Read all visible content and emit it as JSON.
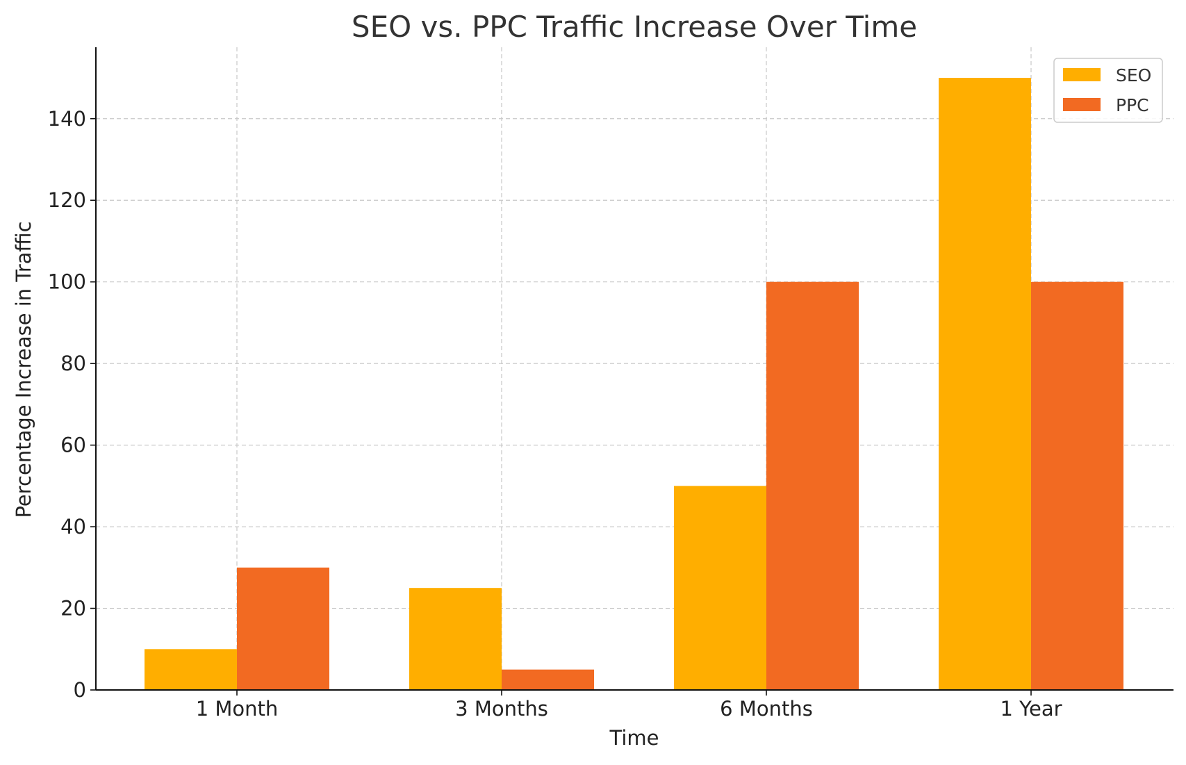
{
  "chart_data": {
    "type": "bar",
    "title": "SEO vs. PPC Traffic Increase Over Time",
    "xlabel": "Time",
    "ylabel": "Percentage Increase in Traffic",
    "categories": [
      "1 Month",
      "3 Months",
      "6 Months",
      "1 Year"
    ],
    "series": [
      {
        "name": "SEO",
        "color": "#FFAE00",
        "values": [
          10,
          25,
          50,
          150
        ]
      },
      {
        "name": "PPC",
        "color": "#F26A22",
        "values": [
          30,
          5,
          100,
          100
        ]
      }
    ],
    "ylim": [
      0,
      157.5
    ],
    "yticks": [
      0,
      20,
      40,
      60,
      80,
      100,
      120,
      140
    ],
    "grid": true,
    "legend_position": "top-right"
  }
}
